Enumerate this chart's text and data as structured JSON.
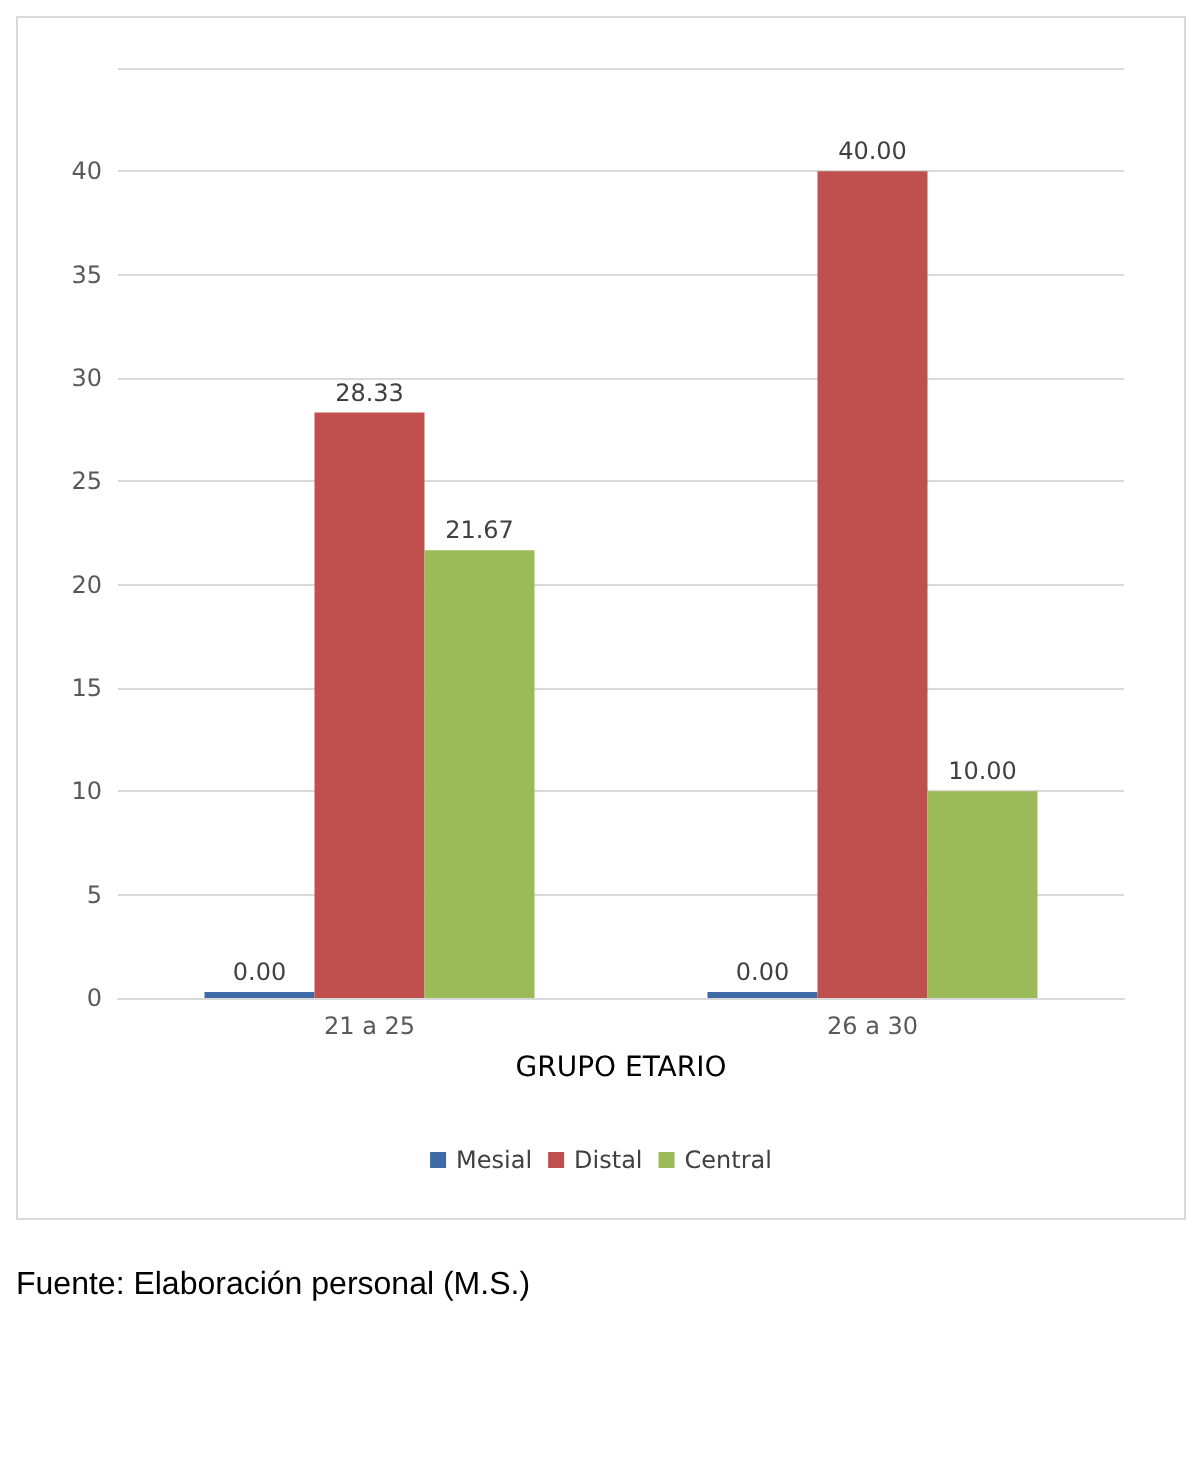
{
  "chart_data": {
    "type": "bar",
    "categories": [
      "21 a 25",
      "26 a 30"
    ],
    "series": [
      {
        "name": "Mesial",
        "color": "#3e6aa6",
        "values": [
          0,
          0
        ],
        "value_labels": [
          "0.00",
          "0.00"
        ]
      },
      {
        "name": "Distal",
        "color": "#c0504d",
        "values": [
          28.33,
          40
        ],
        "value_labels": [
          "28.33",
          "40.00"
        ]
      },
      {
        "name": "Central",
        "color": "#9bbb59",
        "values": [
          21.67,
          10
        ],
        "value_labels": [
          "21.67",
          "10.00"
        ]
      }
    ],
    "xlabel": "GRUPO ETARIO",
    "ylim": [
      0,
      45
    ],
    "yticks": [
      0,
      5,
      10,
      15,
      20,
      25,
      30,
      35,
      40,
      {
        "value": 45,
        "label": null
      }
    ],
    "grid": "y",
    "legend": "bottom",
    "annotations": [
      "Fuente: Elaboración personal (M.S.)"
    ]
  }
}
